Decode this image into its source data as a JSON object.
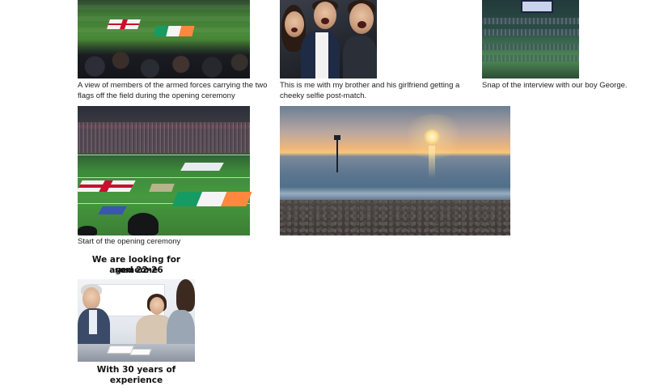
{
  "gallery": {
    "items": [
      {
        "name": "armed-forces-flags-photo",
        "caption": "A view of members of the armed forces carrying the two flags off the field during the opening ceremony"
      },
      {
        "name": "selfie-photo",
        "caption": "This is me with my brother and his girlfriend getting a cheeky selfie post-match."
      },
      {
        "name": "interview-screen-photo",
        "caption": "Snap of the interview with our boy George."
      },
      {
        "name": "opening-ceremony-photo",
        "caption": "Start of the opening ceremony"
      },
      {
        "name": "sunset-photo",
        "caption": ""
      }
    ]
  },
  "ad": {
    "heading_line1": "We are looking for someone",
    "heading_line2": "aged 22-26",
    "footer_line": "With 30 years of experience"
  },
  "colors": {
    "pitch_green": "#4a8a38",
    "england_red": "#c8102e",
    "ireland_green": "#169b62",
    "ireland_orange": "#ff883e",
    "sunset_gold": "#f7c77e"
  }
}
